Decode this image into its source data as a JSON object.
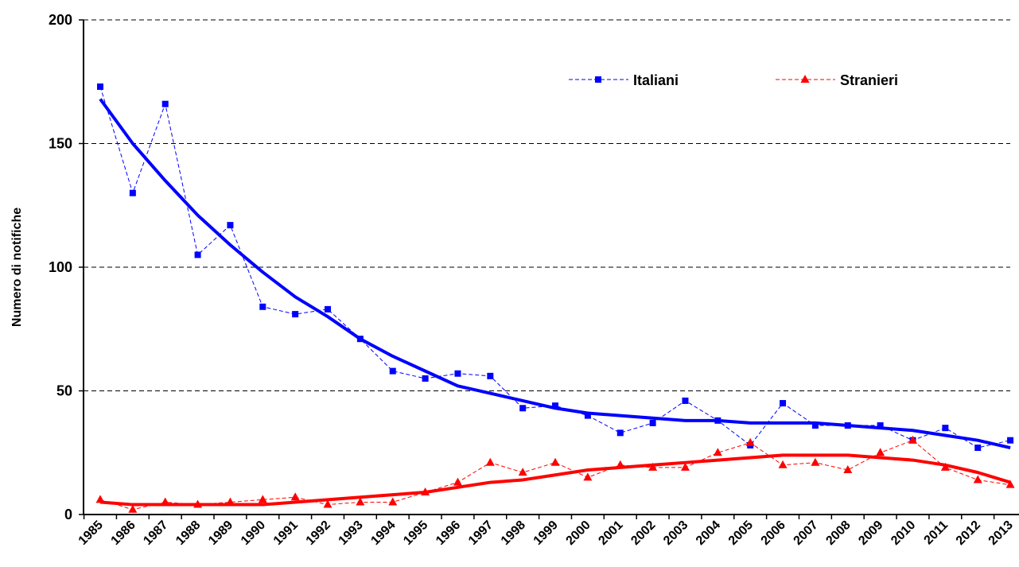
{
  "chart_data": {
    "type": "line",
    "y_label": "Numero di notifiche",
    "categories": [
      "1985",
      "1986",
      "1987",
      "1988",
      "1989",
      "1990",
      "1991",
      "1992",
      "1993",
      "1994",
      "1995",
      "1996",
      "1997",
      "1998",
      "1999",
      "2000",
      "2001",
      "2002",
      "2003",
      "2004",
      "2005",
      "2006",
      "2007",
      "2008",
      "2009",
      "2010",
      "2011",
      "2012",
      "2013"
    ],
    "series": [
      {
        "name": "Italiani",
        "color": "#0000ff",
        "marker": "square",
        "values": [
          173,
          130,
          166,
          105,
          117,
          84,
          81,
          83,
          71,
          58,
          55,
          57,
          56,
          43,
          44,
          40,
          33,
          37,
          46,
          38,
          28,
          45,
          36,
          36,
          36,
          30,
          35,
          27,
          30
        ],
        "trend": [
          168,
          150,
          135,
          121,
          109,
          98,
          88,
          80,
          71,
          64,
          58,
          52,
          49,
          46,
          43,
          41,
          40,
          39,
          38,
          38,
          37,
          37,
          37,
          36,
          35,
          34,
          32,
          30,
          27
        ]
      },
      {
        "name": "Stranieri",
        "color": "#ff0000",
        "marker": "triangle",
        "values": [
          6,
          2,
          5,
          4,
          5,
          6,
          7,
          4,
          5,
          5,
          9,
          13,
          21,
          17,
          21,
          15,
          20,
          19,
          19,
          25,
          29,
          20,
          21,
          18,
          25,
          30,
          19,
          14,
          12
        ],
        "trend": [
          5,
          4,
          4,
          4,
          4,
          4,
          5,
          6,
          7,
          8,
          9,
          11,
          13,
          14,
          16,
          18,
          19,
          20,
          21,
          22,
          23,
          24,
          24,
          24,
          23,
          22,
          20,
          17,
          13
        ]
      }
    ],
    "ylim": [
      0,
      200
    ],
    "yticks": [
      0,
      50,
      100,
      150,
      200
    ],
    "grid": true
  }
}
